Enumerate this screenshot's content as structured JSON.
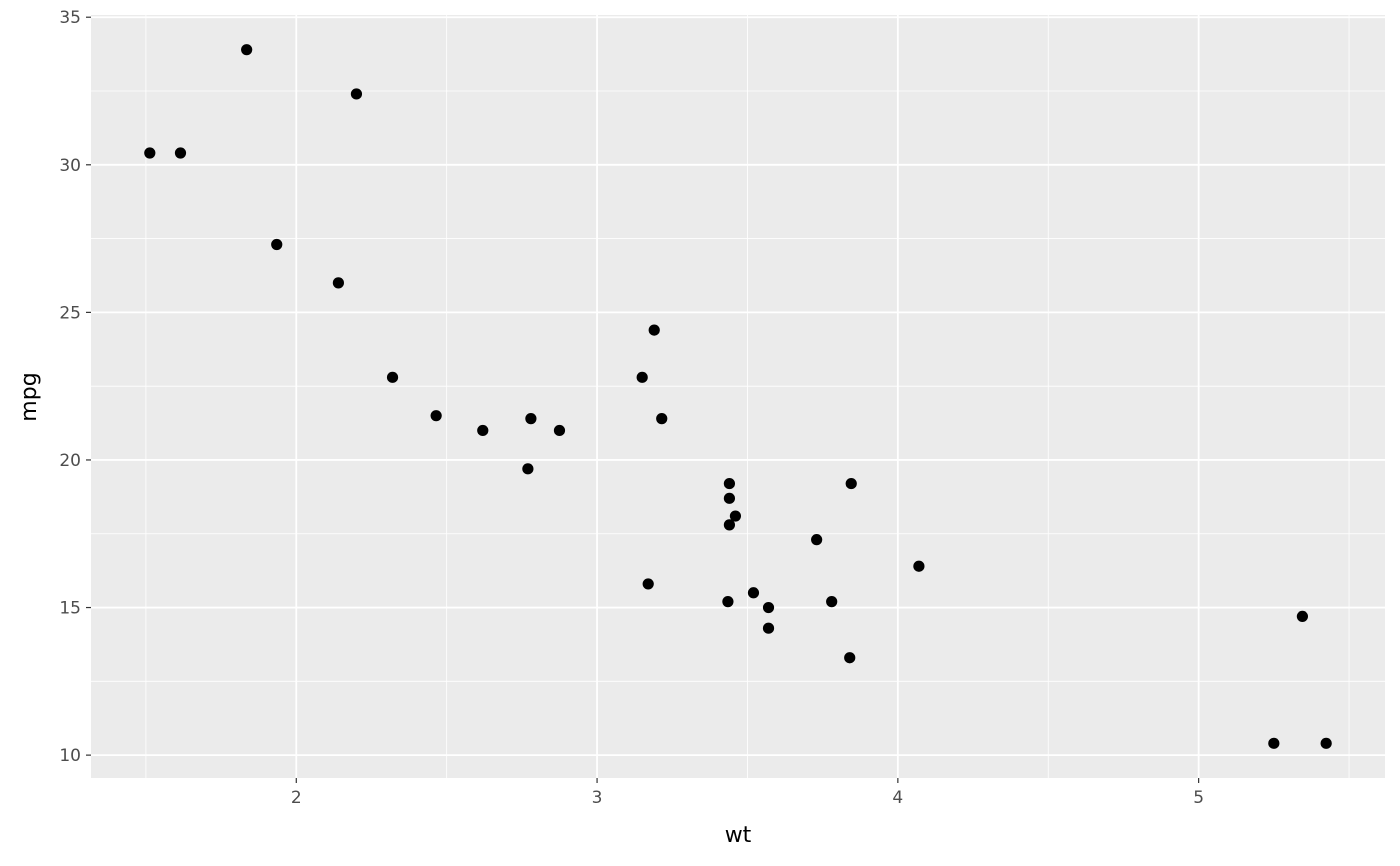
{
  "chart_data": {
    "type": "scatter",
    "title": "",
    "xlabel": "wt",
    "ylabel": "mpg",
    "xlim": [
      1.3175,
      5.6196
    ],
    "ylim": [
      9.225,
      35.075
    ],
    "x_ticks": [
      2,
      3,
      4,
      5
    ],
    "y_ticks": [
      10,
      15,
      20,
      25,
      30,
      35
    ],
    "x_tick_labels": [
      "2",
      "3",
      "4",
      "5"
    ],
    "y_tick_labels": [
      "10",
      "15",
      "20",
      "25",
      "30",
      "35"
    ],
    "grid": true,
    "panel_background": "#EBEBEB",
    "grid_color": "#FFFFFF",
    "point_color": "#000000",
    "points": [
      [
        2.62,
        21.0
      ],
      [
        2.875,
        21.0
      ],
      [
        2.32,
        22.8
      ],
      [
        3.215,
        21.4
      ],
      [
        3.44,
        18.7
      ],
      [
        3.46,
        18.1
      ],
      [
        3.57,
        14.3
      ],
      [
        3.19,
        24.4
      ],
      [
        3.15,
        22.8
      ],
      [
        3.44,
        19.2
      ],
      [
        3.44,
        17.8
      ],
      [
        4.07,
        16.4
      ],
      [
        3.73,
        17.3
      ],
      [
        3.78,
        15.2
      ],
      [
        5.25,
        10.4
      ],
      [
        5.424,
        10.4
      ],
      [
        5.345,
        14.7
      ],
      [
        2.2,
        32.4
      ],
      [
        1.615,
        30.4
      ],
      [
        1.835,
        33.9
      ],
      [
        2.465,
        21.5
      ],
      [
        3.52,
        15.5
      ],
      [
        3.435,
        15.2
      ],
      [
        3.84,
        13.3
      ],
      [
        3.845,
        19.2
      ],
      [
        1.935,
        27.3
      ],
      [
        2.14,
        26.0
      ],
      [
        1.513,
        30.4
      ],
      [
        3.17,
        15.8
      ],
      [
        2.77,
        19.7
      ],
      [
        3.57,
        15.0
      ],
      [
        2.78,
        21.4
      ]
    ]
  }
}
